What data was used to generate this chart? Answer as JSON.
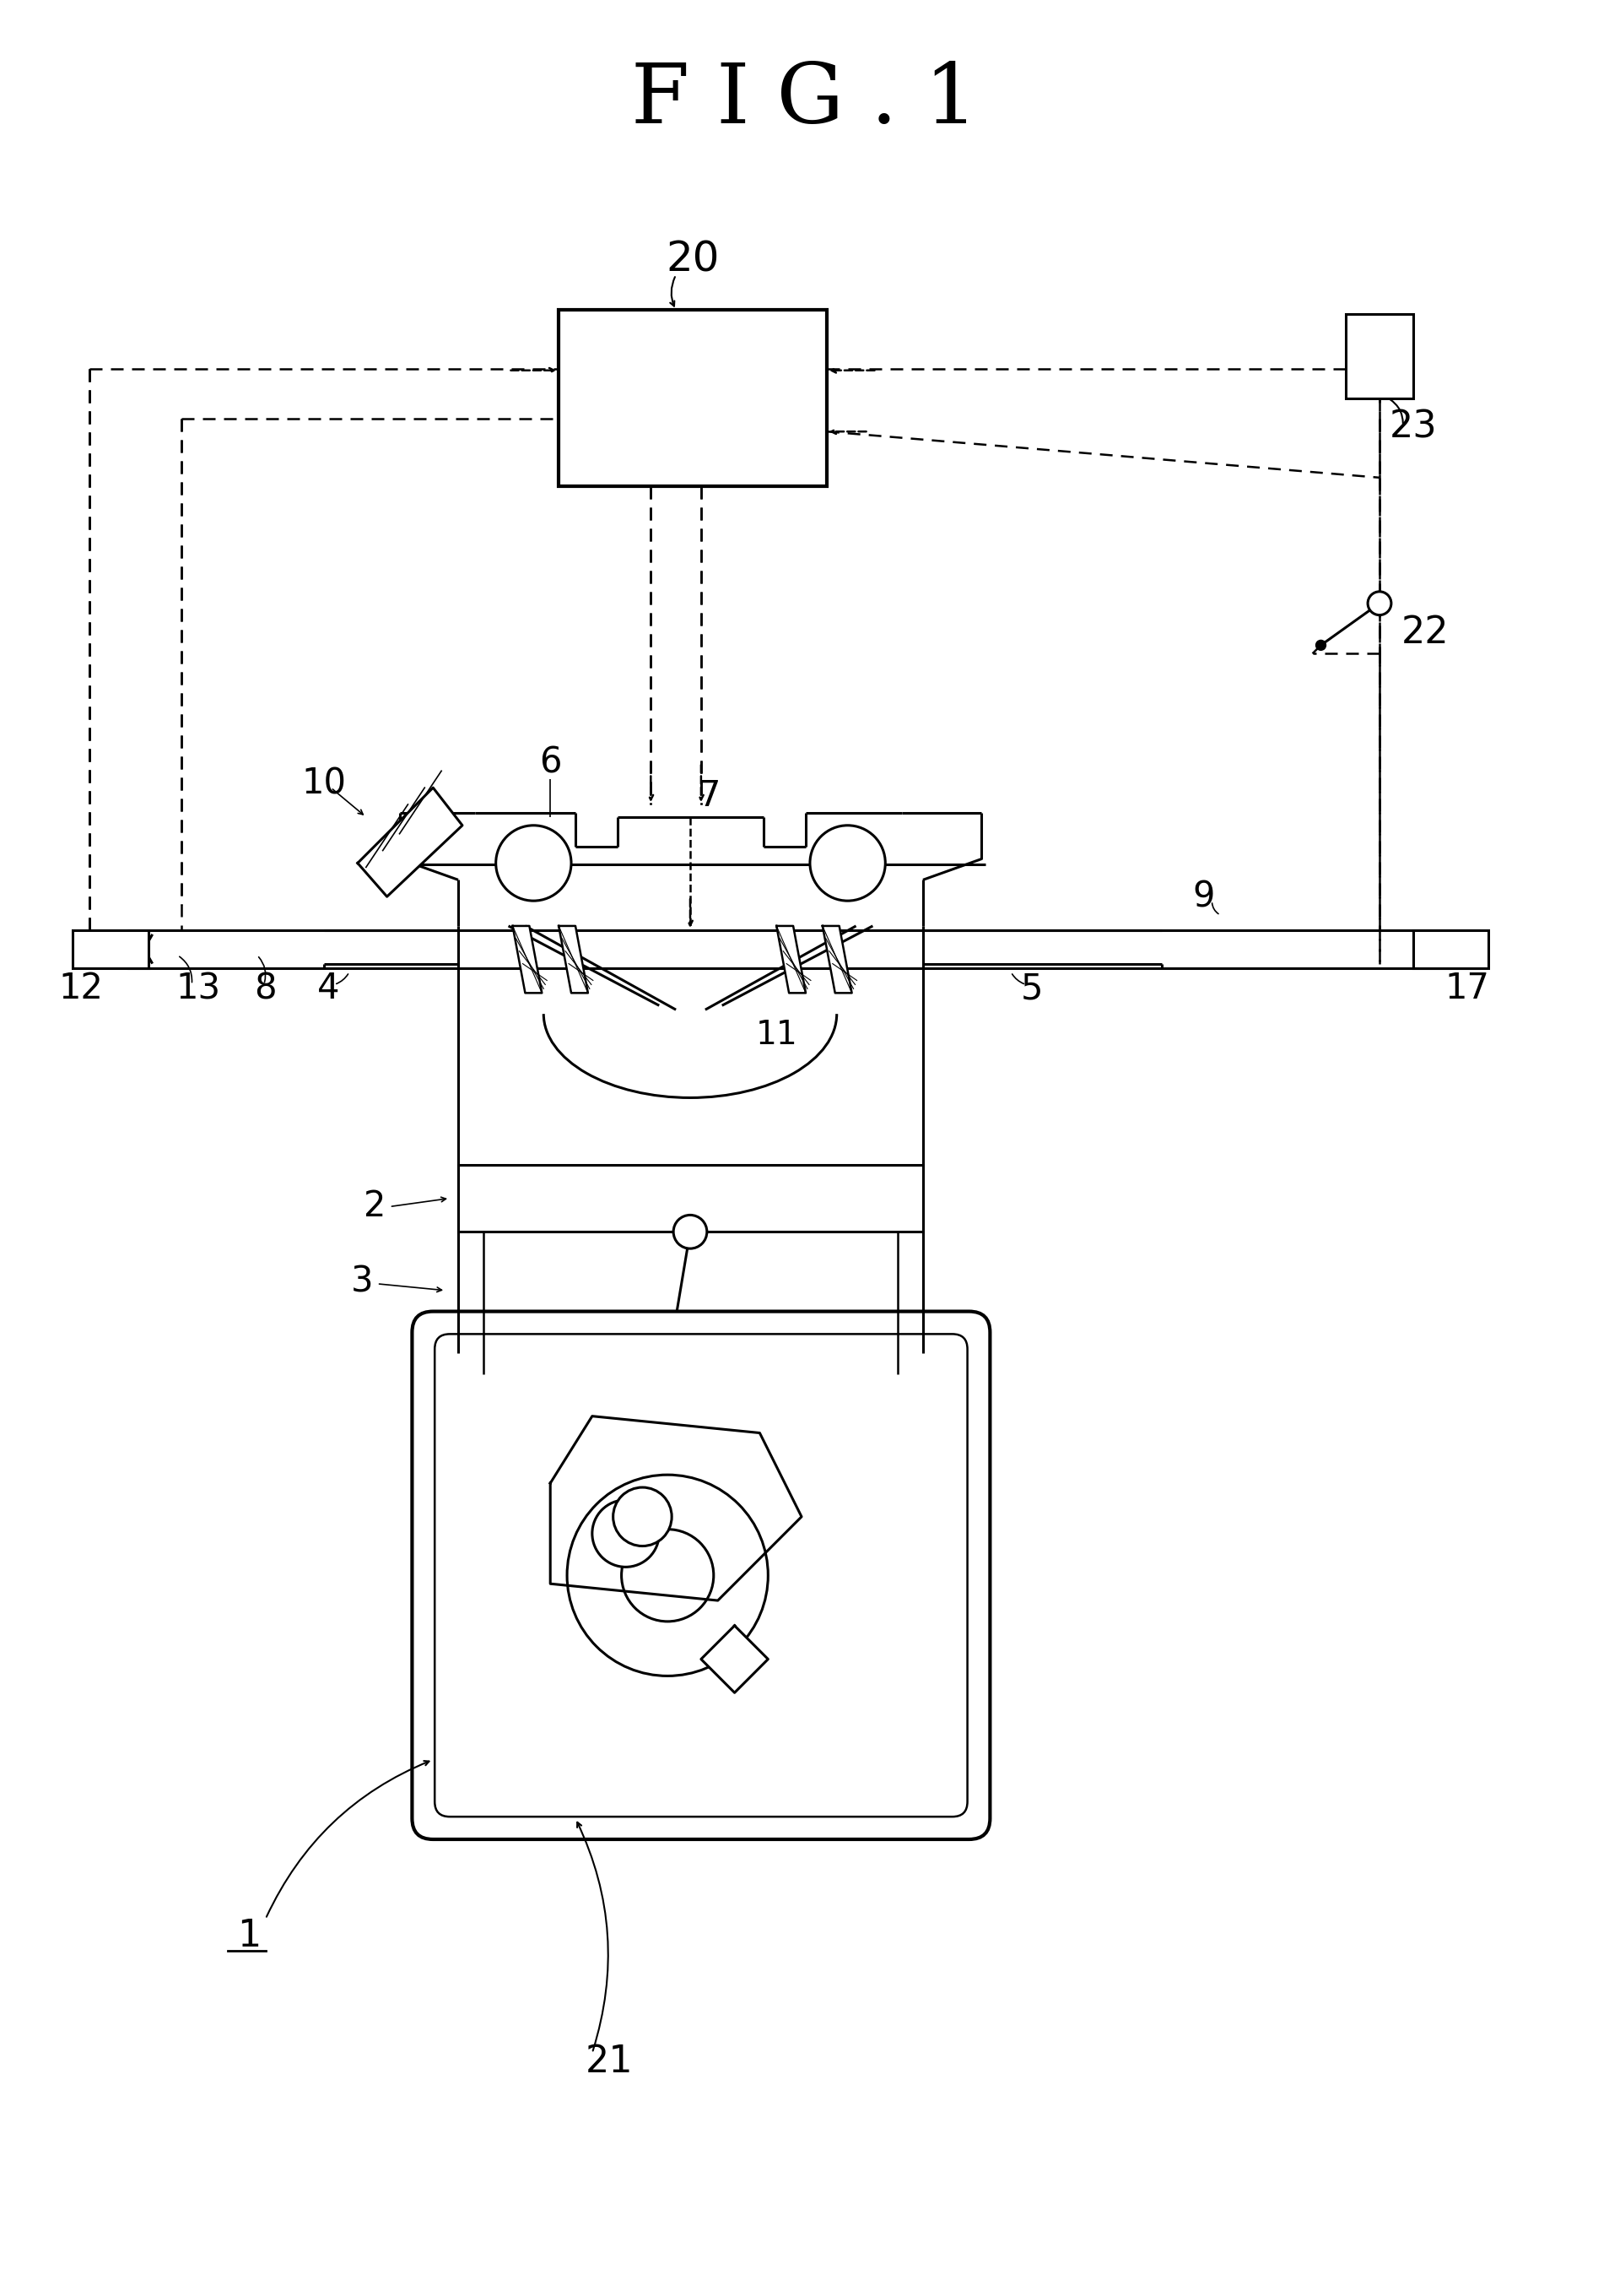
{
  "title": "F I G . 1",
  "bg_color": "#ffffff",
  "line_color": "#000000",
  "fig_width": 19.07,
  "fig_height": 27.2
}
